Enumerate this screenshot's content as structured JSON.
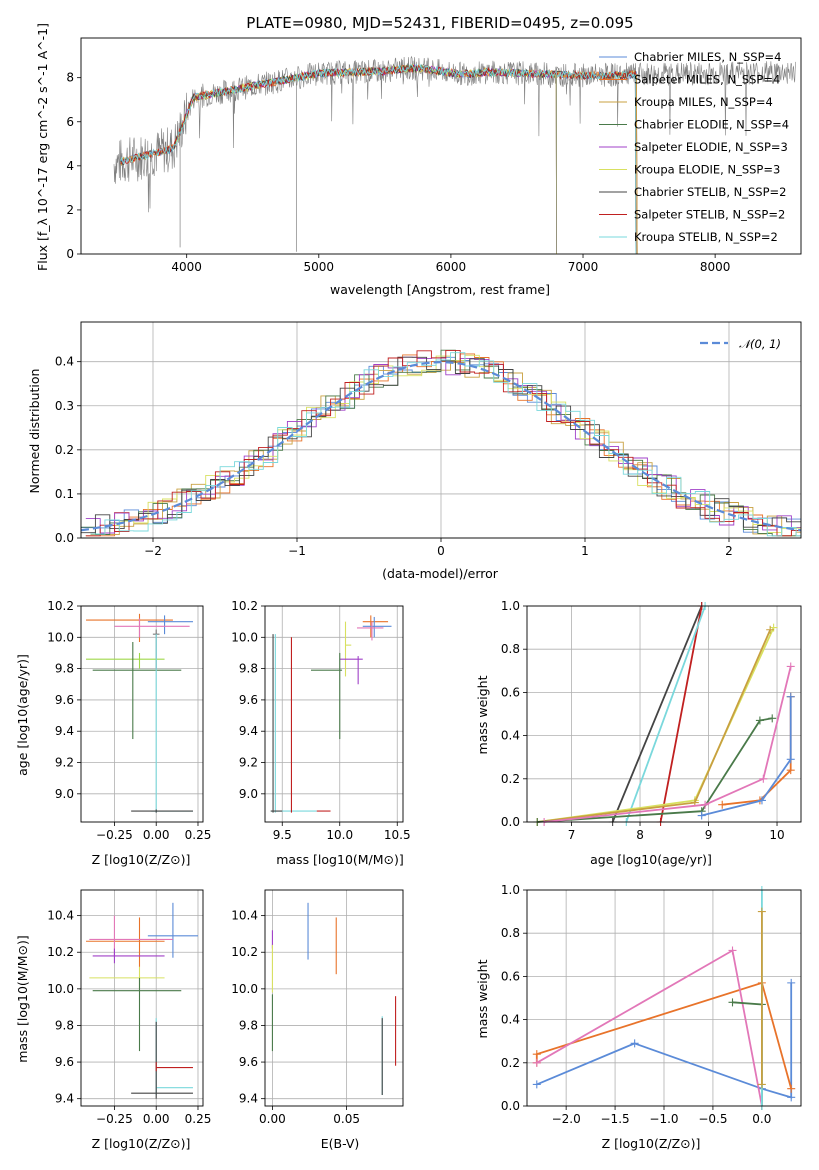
{
  "chart_data": [
    {
      "type": "line",
      "title": "PLATE=0980, MJD=52431, FIBERID=0495, z=0.095",
      "xlabel": "wavelength [Angstrom, rest frame]",
      "ylabel": "Flux [f_λ 10^-17 erg cm^-2 s^-1 A^-1]",
      "xlim": [
        3200,
        8650
      ],
      "ylim": [
        0,
        9.8
      ],
      "xticks": [
        "4000",
        "5000",
        "6000",
        "7000",
        "8000"
      ],
      "yticks": [
        "0",
        "2",
        "4",
        "6",
        "8"
      ],
      "legend_position": "right",
      "series": [
        {
          "name": "Chabrier MILES, N_SSP=4",
          "color": "#5b8bd8",
          "x_range": [
            3500,
            7410
          ]
        },
        {
          "name": "Salpeter MILES, N_SSP=4",
          "color": "#e8732a",
          "x_range": [
            3500,
            7410
          ]
        },
        {
          "name": "Kroupa MILES, N_SSP=4",
          "color": "#c8a040",
          "x_range": [
            3500,
            7410
          ]
        },
        {
          "name": "Chabrier ELODIE, N_SSP=4",
          "color": "#4a7a4a",
          "x_range": [
            3900,
            6800
          ]
        },
        {
          "name": "Salpeter ELODIE, N_SSP=3",
          "color": "#a040c8",
          "x_range": [
            3900,
            6800
          ]
        },
        {
          "name": "Kroupa ELODIE, N_SSP=3",
          "color": "#d8e060",
          "x_range": [
            3900,
            6800
          ]
        },
        {
          "name": "Chabrier STELIB, N_SSP=2",
          "color": "#444444",
          "x_range": [
            3500,
            7400
          ]
        },
        {
          "name": "Salpeter STELIB, N_SSP=2",
          "color": "#c02020",
          "x_range": [
            3500,
            7400
          ]
        },
        {
          "name": "Kroupa STELIB, N_SSP=2",
          "color": "#7ad8dc",
          "x_range": [
            3500,
            7400
          ]
        }
      ],
      "data_series": {
        "name": "data",
        "color": "#808080",
        "x_range": [
          3450,
          8610
        ]
      }
    },
    {
      "type": "line",
      "xlabel": "(data-model)/error",
      "ylabel": "Normed distribution",
      "xlim": [
        -2.5,
        2.5
      ],
      "ylim": [
        0,
        0.49
      ],
      "xticks": [
        "−2",
        "−1",
        "0",
        "1",
        "2"
      ],
      "yticks": [
        "0.0",
        "0.1",
        "0.2",
        "0.3",
        "0.4"
      ],
      "grid": true,
      "legend_position": "top-right",
      "legend": [
        {
          "name": "𝒩(0, 1)",
          "color": "#5b8bd8",
          "style": "dashed"
        }
      ],
      "gaussian": {
        "mean": 0,
        "sigma": 1
      }
    },
    {
      "type": "scatter",
      "xlabel": "Z [log10(Z/Z⊙)]",
      "ylabel": "age [log10(age/yr)]",
      "xlim": [
        -0.45,
        0.28
      ],
      "ylim": [
        8.82,
        10.2
      ],
      "xticks": [
        "−0.25",
        "0.00",
        "0.25"
      ],
      "yticks": [
        "9.0",
        "9.2",
        "9.4",
        "9.6",
        "9.8",
        "10.0",
        "10.2"
      ],
      "grid": true,
      "errorbars": [
        {
          "color": "#e8732a",
          "x": -0.1,
          "x_lo": -0.42,
          "x_hi": 0.1,
          "y": 10.11,
          "y_lo": 9.97,
          "y_hi": 10.15
        },
        {
          "color": "#5b8bd8",
          "x": 0.05,
          "x_lo": -0.05,
          "x_hi": 0.22,
          "y": 10.1,
          "y_lo": 10.02,
          "y_hi": 10.14
        },
        {
          "color": "#e277b8",
          "x": -0.1,
          "x_lo": -0.25,
          "x_hi": 0.2,
          "y": 10.07,
          "y_lo": 10.0,
          "y_hi": 10.12
        },
        {
          "color": "#7a7a7a",
          "x": 0.0,
          "x_lo": -0.02,
          "x_hi": 0.02,
          "y": 10.02,
          "y_lo": 9.8,
          "y_hi": 10.05
        },
        {
          "color": "#9fd84a",
          "x": -0.1,
          "x_lo": -0.42,
          "x_hi": 0.05,
          "y": 9.86,
          "y_lo": 9.8,
          "y_hi": 9.9
        },
        {
          "color": "#4a7a4a",
          "x": -0.14,
          "x_lo": -0.38,
          "x_hi": 0.15,
          "y": 9.79,
          "y_lo": 9.35,
          "y_hi": 9.97
        },
        {
          "color": "#7ad8dc",
          "x": 0.0,
          "x_lo": -0.03,
          "x_hi": 0.22,
          "y": 8.89,
          "y_lo": 8.88,
          "y_hi": 10.02
        },
        {
          "color": "#444444",
          "x": 0.0,
          "x_lo": -0.15,
          "x_hi": 0.22,
          "y": 8.89,
          "y_lo": 8.88,
          "y_hi": 8.9
        }
      ]
    },
    {
      "type": "scatter",
      "xlabel": "mass [log10(M/M⊙)]",
      "ylabel": "",
      "xlim": [
        9.35,
        10.55
      ],
      "ylim": [
        8.82,
        10.2
      ],
      "xticks": [
        "9.5",
        "10.0",
        "10.5"
      ],
      "yticks": [
        "9.0",
        "9.2",
        "9.4",
        "9.6",
        "9.8",
        "10.0",
        "10.2"
      ],
      "grid": true,
      "errorbars": [
        {
          "color": "#e8732a",
          "x": 10.27,
          "x_lo": 10.2,
          "x_hi": 10.42,
          "y": 10.1,
          "y_lo": 10.0,
          "y_hi": 10.14
        },
        {
          "color": "#5b8bd8",
          "x": 10.3,
          "x_lo": 10.2,
          "x_hi": 10.45,
          "y": 10.07,
          "y_lo": 10.0,
          "y_hi": 10.13
        },
        {
          "color": "#e277b8",
          "x": 10.28,
          "x_lo": 10.15,
          "x_hi": 10.38,
          "y": 10.06,
          "y_lo": 9.98,
          "y_hi": 10.1
        },
        {
          "color": "#d8e060",
          "x": 10.05,
          "x_lo": 10.05,
          "x_hi": 10.1,
          "y": 9.95,
          "y_lo": 9.75,
          "y_hi": 10.1
        },
        {
          "color": "#a040c8",
          "x": 10.16,
          "x_lo": 10.0,
          "x_hi": 10.2,
          "y": 9.86,
          "y_lo": 9.7,
          "y_hi": 9.88
        },
        {
          "color": "#4a7a4a",
          "x": 10.0,
          "x_lo": 9.75,
          "x_hi": 10.02,
          "y": 9.79,
          "y_lo": 9.35,
          "y_hi": 9.9
        },
        {
          "color": "#7ad8dc",
          "x": 9.44,
          "x_lo": 9.4,
          "x_hi": 9.8,
          "y": 8.89,
          "y_lo": 8.88,
          "y_hi": 10.02
        },
        {
          "color": "#444444",
          "x": 9.42,
          "x_lo": 9.4,
          "x_hi": 9.5,
          "y": 8.89,
          "y_lo": 8.88,
          "y_hi": 10.02
        },
        {
          "color": "#c02020",
          "x": 9.58,
          "x_lo": 9.8,
          "x_hi": 9.92,
          "y": 8.89,
          "y_lo": 8.88,
          "y_hi": 10.0
        }
      ]
    },
    {
      "type": "line",
      "xlabel": "age [log10(age/yr)]",
      "ylabel": "mass weight",
      "xlim": [
        6.35,
        10.35
      ],
      "ylim": [
        0,
        1.0
      ],
      "xticks": [
        "7",
        "8",
        "9",
        "10"
      ],
      "yticks": [
        "0.0",
        "0.2",
        "0.4",
        "0.6",
        "0.8",
        "1.0"
      ],
      "grid": true,
      "series": [
        {
          "color": "#444444",
          "x": [
            7.6,
            8.9
          ],
          "y": [
            0.0,
            1.0
          ]
        },
        {
          "color": "#c02020",
          "x": [
            8.3,
            8.9
          ],
          "y": [
            0.0,
            1.0
          ]
        },
        {
          "color": "#7ad8dc",
          "x": [
            7.8,
            8.95
          ],
          "y": [
            0.0,
            1.0
          ]
        },
        {
          "color": "#d8e060",
          "x": [
            6.5,
            8.8,
            9.95
          ],
          "y": [
            0.0,
            0.1,
            0.9
          ]
        },
        {
          "color": "#c8a040",
          "x": [
            6.5,
            8.8,
            9.9
          ],
          "y": [
            0.0,
            0.09,
            0.89
          ]
        },
        {
          "color": "#4a7a4a",
          "x": [
            6.5,
            8.9,
            9.75,
            9.93
          ],
          "y": [
            0.0,
            0.05,
            0.47,
            0.48
          ]
        },
        {
          "color": "#e277b8",
          "x": [
            6.6,
            8.95,
            9.8,
            10.2
          ],
          "y": [
            0.0,
            0.08,
            0.2,
            0.72
          ]
        },
        {
          "color": "#e8732a",
          "x": [
            9.2,
            9.75,
            10.2,
            10.2
          ],
          "y": [
            0.08,
            0.1,
            0.24,
            0.58
          ]
        },
        {
          "color": "#5b8bd8",
          "x": [
            8.9,
            9.78,
            10.2,
            10.2
          ],
          "y": [
            0.03,
            0.1,
            0.29,
            0.58
          ]
        }
      ]
    },
    {
      "type": "scatter",
      "xlabel": "Z [log10(Z/Z⊙)]",
      "ylabel": "mass [log10(M/M⊙)]",
      "xlim": [
        -0.45,
        0.28
      ],
      "ylim": [
        9.36,
        10.54
      ],
      "xticks": [
        "−0.25",
        "0.00",
        "0.25"
      ],
      "yticks": [
        "9.4",
        "9.6",
        "9.8",
        "10.0",
        "10.2",
        "10.4"
      ],
      "grid": true,
      "errorbars": [
        {
          "color": "#5b8bd8",
          "x": 0.1,
          "x_lo": -0.05,
          "x_hi": 0.25,
          "y": 10.29,
          "y_lo": 10.17,
          "y_hi": 10.47
        },
        {
          "color": "#e8732a",
          "x": -0.1,
          "x_lo": -0.42,
          "x_hi": 0.05,
          "y": 10.26,
          "y_lo": 10.12,
          "y_hi": 10.39
        },
        {
          "color": "#e277b8",
          "x": -0.25,
          "x_lo": -0.4,
          "x_hi": 0.1,
          "y": 10.27,
          "y_lo": 10.18,
          "y_hi": 10.4
        },
        {
          "color": "#a040c8",
          "x": -0.25,
          "x_lo": -0.38,
          "x_hi": 0.05,
          "y": 10.18,
          "y_lo": 10.14,
          "y_hi": 10.22
        },
        {
          "color": "#d8e060",
          "x": -0.1,
          "x_lo": -0.4,
          "x_hi": 0.05,
          "y": 10.06,
          "y_lo": 10.0,
          "y_hi": 10.12
        },
        {
          "color": "#4a7a4a",
          "x": -0.1,
          "x_lo": -0.38,
          "x_hi": 0.15,
          "y": 9.99,
          "y_lo": 9.66,
          "y_hi": 10.06
        },
        {
          "color": "#7ad8dc",
          "x": 0.0,
          "x_lo": 0.0,
          "x_hi": 0.22,
          "y": 9.46,
          "y_lo": 9.42,
          "y_hi": 9.84
        },
        {
          "color": "#444444",
          "x": 0.0,
          "x_lo": -0.15,
          "x_hi": 0.22,
          "y": 9.43,
          "y_lo": 9.4,
          "y_hi": 9.82
        },
        {
          "color": "#c02020",
          "x": 0.0,
          "x_lo": 0.0,
          "x_hi": 0.22,
          "y": 9.57,
          "y_lo": 9.55,
          "y_hi": 9.6
        }
      ]
    },
    {
      "type": "scatter",
      "xlabel": "E(B-V)",
      "ylabel": "",
      "xlim": [
        -0.005,
        0.088
      ],
      "ylim": [
        9.36,
        10.54
      ],
      "xticks": [
        "0.00",
        "0.05"
      ],
      "yticks": [
        "9.4",
        "9.6",
        "9.8",
        "10.0",
        "10.2",
        "10.4"
      ],
      "grid": true,
      "errorbars": [
        {
          "color": "#a040c8",
          "x": 0.0,
          "y_lo": 10.22,
          "y_hi": 10.32
        },
        {
          "color": "#d8e060",
          "x": 0.0,
          "y_lo": 9.98,
          "y_hi": 10.24
        },
        {
          "color": "#4a7a4a",
          "x": 0.0,
          "y_lo": 9.66,
          "y_hi": 9.97
        },
        {
          "color": "#5b8bd8",
          "x": 0.024,
          "y_lo": 10.16,
          "y_hi": 10.47
        },
        {
          "color": "#e8732a",
          "x": 0.043,
          "y_lo": 10.08,
          "y_hi": 10.39
        },
        {
          "color": "#7ad8dc",
          "x": 0.074,
          "y_lo": 9.42,
          "y_hi": 9.85
        },
        {
          "color": "#444444",
          "x": 0.074,
          "y_lo": 9.42,
          "y_hi": 9.84
        },
        {
          "color": "#c02020",
          "x": 0.083,
          "y_lo": 9.58,
          "y_hi": 9.96
        }
      ]
    },
    {
      "type": "line",
      "xlabel": "Z [log10(Z/Z⊙)]",
      "ylabel": "mass weight",
      "xlim": [
        -2.4,
        0.4
      ],
      "ylim": [
        0,
        1.0
      ],
      "xticks": [
        "−2.0",
        "−1.5",
        "−1.0",
        "−0.5",
        "0.0"
      ],
      "yticks": [
        "0.0",
        "0.2",
        "0.4",
        "0.6",
        "0.8",
        "1.0"
      ],
      "grid": true,
      "series": [
        {
          "color": "#5b8bd8",
          "x": [
            -2.3,
            -1.3,
            0.0,
            0.3,
            0.3
          ],
          "y": [
            0.1,
            0.29,
            0.08,
            0.04,
            0.57
          ]
        },
        {
          "color": "#e8732a",
          "x": [
            -2.3,
            -2.3,
            0.0,
            0.3
          ],
          "y": [
            0.2,
            0.24,
            0.57,
            0.08
          ]
        },
        {
          "color": "#e277b8",
          "x": [
            -2.3,
            -0.3,
            0.0
          ],
          "y": [
            0.2,
            0.72,
            0.0
          ]
        },
        {
          "color": "#4a7a4a",
          "x": [
            -0.3,
            0.0,
            0.0
          ],
          "y": [
            0.48,
            0.47,
            0.0
          ]
        },
        {
          "color": "#7ad8dc",
          "x": [
            0.0,
            0.0
          ],
          "y": [
            0.0,
            1.0
          ]
        },
        {
          "color": "#c8a040",
          "x": [
            0.0,
            0.0
          ],
          "y": [
            0.1,
            0.9
          ]
        }
      ]
    }
  ]
}
